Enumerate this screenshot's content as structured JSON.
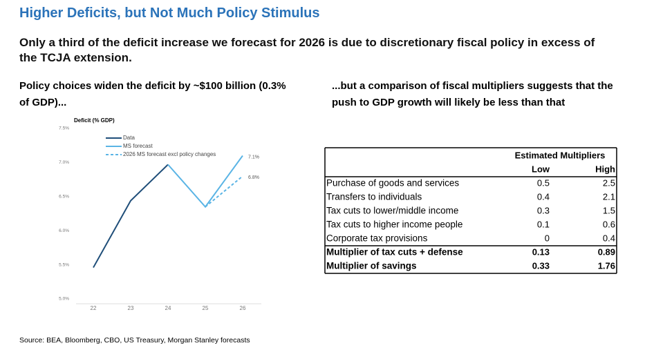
{
  "header": {
    "title": "Higher Deficits, but Not Much Policy Stimulus",
    "subtitle": "Only a third of the deficit increase we forecast for 2026 is due to discretionary fiscal policy in excess of the TCJA extension.",
    "left_heading": "Policy choices widen the deficit by ~$100 billion (0.3% of GDP)...",
    "right_heading": "...but a comparison of fiscal multipliers suggests that the push to GDP growth will likely be less than that"
  },
  "chart_data": {
    "type": "line",
    "y_label": "Deficit (% GDP)",
    "categories": [
      "22",
      "23",
      "24",
      "25",
      "26"
    ],
    "series": [
      {
        "name": "Data",
        "color": "#1f4e79",
        "dash": false,
        "values": [
          5.46,
          6.44,
          6.97,
          null,
          null
        ]
      },
      {
        "name": "MS forecast",
        "color": "#5ab4e5",
        "dash": false,
        "values": [
          null,
          null,
          6.97,
          6.35,
          7.1
        ],
        "value_labels": [
          null,
          null,
          null,
          null,
          "7.1%"
        ]
      },
      {
        "name": "2026 MS forecast excl policy changes",
        "color": "#5ab4e5",
        "dash": true,
        "values": [
          null,
          null,
          null,
          6.35,
          6.8
        ],
        "value_labels": [
          null,
          null,
          null,
          null,
          "6.8%"
        ]
      }
    ],
    "ylim": [
      5.0,
      7.5
    ],
    "yticks": [
      {
        "value": 5.0,
        "label": "5.0%"
      },
      {
        "value": 5.5,
        "label": "5.5%"
      },
      {
        "value": 6.0,
        "label": "6.0%"
      },
      {
        "value": 6.5,
        "label": "6.5%"
      },
      {
        "value": 7.0,
        "label": "7.0%"
      },
      {
        "value": 7.5,
        "label": "7.5%"
      }
    ],
    "grid": false,
    "legend": "upper-left"
  },
  "table": {
    "title": "Estimated Multipliers",
    "columns": [
      "Low",
      "High"
    ],
    "rows": [
      [
        "Purchase of goods and services",
        "0.5",
        "2.5"
      ],
      [
        "Transfers to individuals",
        "0.4",
        "2.1"
      ],
      [
        "Tax cuts to lower/middle income",
        "0.3",
        "1.5"
      ],
      [
        "Tax cuts to higher income people",
        "0.1",
        "0.6"
      ],
      [
        "Corporate tax provisions",
        "0",
        "0.4"
      ],
      [
        "Multiplier of tax cuts + defense",
        "0.13",
        "0.89"
      ],
      [
        "Multiplier of savings",
        "0.33",
        "1.76"
      ]
    ]
  },
  "source": "Source: BEA, Bloomberg, CBO, US Treasury, Morgan Stanley forecasts"
}
